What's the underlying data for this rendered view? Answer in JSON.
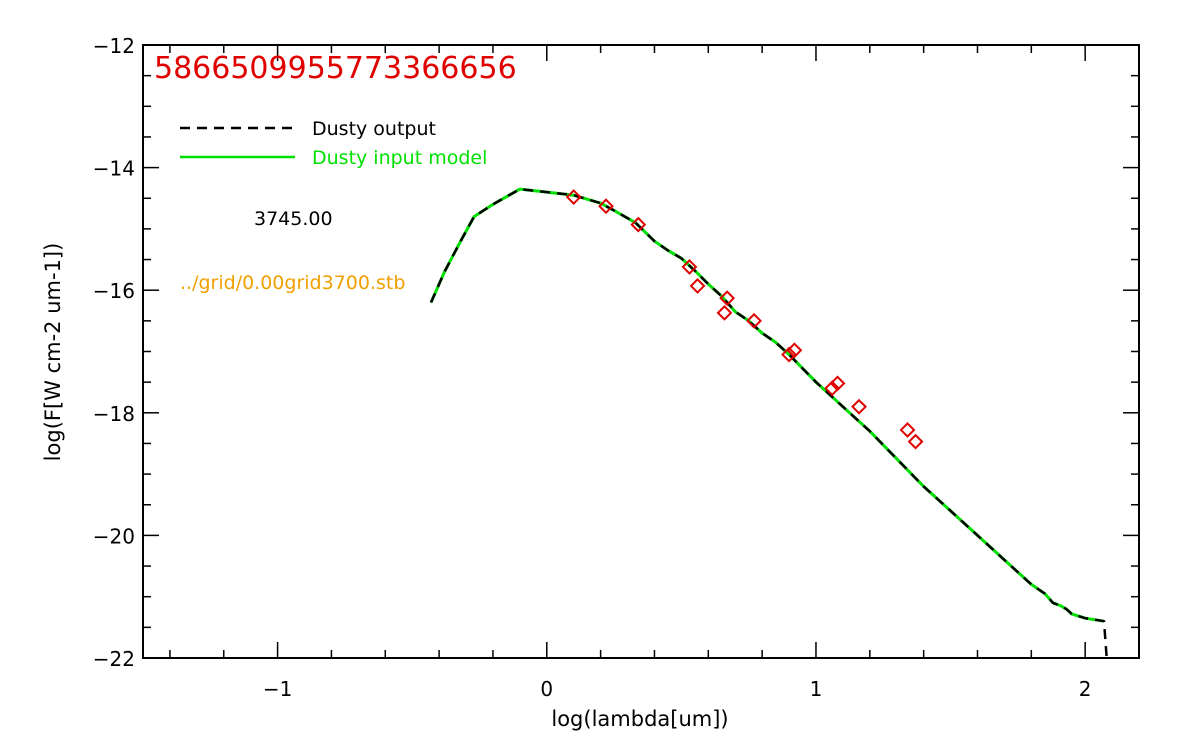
{
  "chart_data": {
    "type": "line",
    "title": "5866509955773366656",
    "xlabel": "log(lambda[um])",
    "ylabel": "log(F[W cm-2 um-1])",
    "xlim": [
      -1.5,
      2.2
    ],
    "ylim": [
      -22,
      -12
    ],
    "x_ticks": [
      -1,
      0,
      1,
      2
    ],
    "x_tick_labels": [
      "−1",
      "0",
      "1",
      "2"
    ],
    "y_ticks": [
      -22,
      -20,
      -18,
      -16,
      -14,
      -12
    ],
    "y_tick_labels": [
      "−22",
      "−20",
      "−18",
      "−16",
      "−14",
      "−12"
    ],
    "legend": {
      "placement": "top-left",
      "entries": [
        {
          "label": "Dusty output",
          "style": "dashed",
          "color": "#000000"
        },
        {
          "label": "Dusty input model",
          "style": "solid",
          "color": "#00e000"
        }
      ]
    },
    "annotations": [
      {
        "text": "3745.00",
        "color": "#000000"
      },
      {
        "text": "../grid/0.00grid3700.stb",
        "color": "#f0a000"
      }
    ],
    "series": [
      {
        "name": "Dusty input model",
        "style": "solid",
        "color": "#00e000",
        "x": [
          -0.43,
          -0.38,
          -0.32,
          -0.27,
          -0.2,
          -0.1,
          0.0,
          0.1,
          0.2,
          0.25,
          0.33,
          0.4,
          0.45,
          0.5,
          0.55,
          0.6,
          0.65,
          0.7,
          0.75,
          0.8,
          0.85,
          0.9,
          1.0,
          1.1,
          1.2,
          1.3,
          1.4,
          1.5,
          1.6,
          1.7,
          1.75,
          1.8,
          1.85,
          1.88,
          1.91,
          1.93,
          1.95,
          2.0,
          2.07
        ],
        "y": [
          -16.2,
          -15.7,
          -15.2,
          -14.8,
          -14.6,
          -14.35,
          -14.4,
          -14.45,
          -14.58,
          -14.7,
          -14.9,
          -15.2,
          -15.35,
          -15.48,
          -15.68,
          -15.9,
          -16.1,
          -16.35,
          -16.5,
          -16.7,
          -16.85,
          -17.05,
          -17.5,
          -17.9,
          -18.3,
          -18.75,
          -19.2,
          -19.6,
          -20.0,
          -20.4,
          -20.6,
          -20.8,
          -20.95,
          -21.1,
          -21.15,
          -21.2,
          -21.28,
          -21.35,
          -21.4
        ]
      },
      {
        "name": "Dusty output",
        "style": "dashed",
        "color": "#000000",
        "x": [
          -0.43,
          -0.38,
          -0.32,
          -0.27,
          -0.2,
          -0.1,
          0.0,
          0.1,
          0.2,
          0.25,
          0.33,
          0.4,
          0.45,
          0.5,
          0.55,
          0.6,
          0.65,
          0.7,
          0.75,
          0.8,
          0.85,
          0.9,
          1.0,
          1.1,
          1.2,
          1.3,
          1.4,
          1.5,
          1.6,
          1.7,
          1.75,
          1.8,
          1.85,
          1.88,
          1.91,
          1.93,
          1.95,
          2.0,
          2.07,
          2.08
        ],
        "y": [
          -16.2,
          -15.7,
          -15.2,
          -14.8,
          -14.6,
          -14.35,
          -14.4,
          -14.45,
          -14.58,
          -14.7,
          -14.9,
          -15.2,
          -15.35,
          -15.48,
          -15.68,
          -15.9,
          -16.1,
          -16.35,
          -16.5,
          -16.7,
          -16.85,
          -17.05,
          -17.5,
          -17.9,
          -18.3,
          -18.75,
          -19.2,
          -19.6,
          -20.0,
          -20.4,
          -20.6,
          -20.8,
          -20.95,
          -21.1,
          -21.15,
          -21.2,
          -21.28,
          -21.35,
          -21.4,
          -22.0
        ]
      },
      {
        "name": "",
        "type": "scatter",
        "marker": "diamond",
        "color": "#e00000",
        "x": [
          0.1,
          0.22,
          0.34,
          0.53,
          0.56,
          0.66,
          0.67,
          0.77,
          0.9,
          0.92,
          1.06,
          1.08,
          1.16,
          1.34,
          1.37
        ],
        "y": [
          -14.48,
          -14.63,
          -14.93,
          -15.62,
          -15.93,
          -16.37,
          -16.13,
          -16.5,
          -17.05,
          -16.98,
          -17.6,
          -17.52,
          -17.9,
          -18.28,
          -18.47
        ]
      }
    ]
  }
}
